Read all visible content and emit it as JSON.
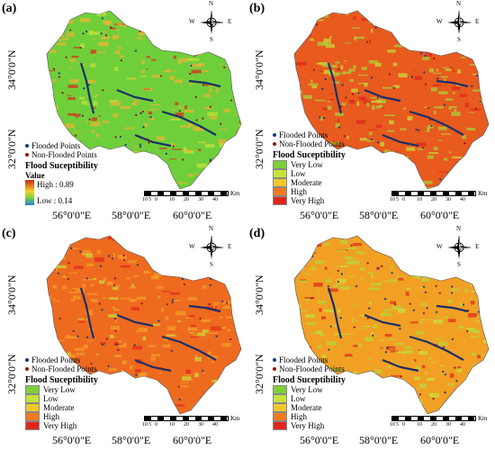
{
  "panels": [
    {
      "label": "(a)",
      "legend_type": "continuous",
      "base_color": "#6fcf3a",
      "accent": "#f2b233"
    },
    {
      "label": "(b)",
      "legend_type": "classes",
      "base_color": "#e85a1e",
      "accent": "#a8d63a"
    },
    {
      "label": "(c)",
      "legend_type": "classes",
      "base_color": "#ee6a1f",
      "accent": "#f3a02a"
    },
    {
      "label": "(d)",
      "legend_type": "classes",
      "base_color": "#f1a024",
      "accent": "#b9d63b"
    }
  ],
  "lat_labels": [
    "34°0'0\"N",
    "32°0'0\"N"
  ],
  "lon_labels": [
    "56°0'0\"E",
    "58°0'0\"E",
    "60°0'0\"E"
  ],
  "legend": {
    "flooded": "Flooded Points",
    "non_flooded": "Non-Flooded Points",
    "title": "Flood Suceptibility",
    "value_label": "Value",
    "high": "High : 0.89",
    "low": "Low : 0.14",
    "classes": [
      {
        "label": "Very Low",
        "color": "#7ecf3a"
      },
      {
        "label": "Low",
        "color": "#c7e23b"
      },
      {
        "label": "Moderate",
        "color": "#f2c72c"
      },
      {
        "label": "High",
        "color": "#f07a20"
      },
      {
        "label": "Very High",
        "color": "#e0251b"
      }
    ]
  },
  "compass": {
    "n": "N",
    "s": "S",
    "e": "E",
    "w": "W"
  },
  "scale": {
    "ticks": [
      "10",
      "5",
      "0",
      "10",
      "20",
      "30",
      "40"
    ],
    "unit": "Km"
  }
}
